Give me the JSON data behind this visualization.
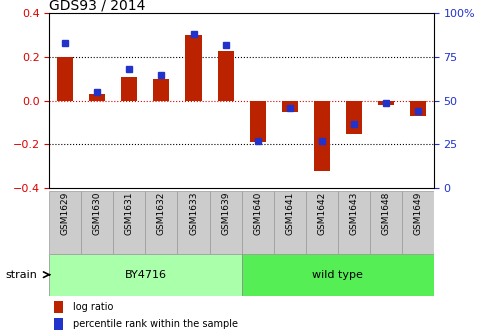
{
  "title": "GDS93 / 2014",
  "samples": [
    "GSM1629",
    "GSM1630",
    "GSM1631",
    "GSM1632",
    "GSM1633",
    "GSM1639",
    "GSM1640",
    "GSM1641",
    "GSM1642",
    "GSM1643",
    "GSM1648",
    "GSM1649"
  ],
  "log_ratio": [
    0.2,
    0.03,
    0.11,
    0.1,
    0.3,
    0.23,
    -0.19,
    -0.05,
    -0.32,
    -0.15,
    -0.02,
    -0.07
  ],
  "percentile": [
    83,
    55,
    68,
    65,
    88,
    82,
    27,
    46,
    27,
    37,
    49,
    44
  ],
  "bar_color": "#bb2200",
  "dot_color": "#2233cc",
  "bar_width": 0.5,
  "strain_groups": [
    {
      "label": "BY4716",
      "start": 0,
      "end": 5,
      "color": "#aaffaa"
    },
    {
      "label": "wild type",
      "start": 6,
      "end": 11,
      "color": "#55ee55"
    }
  ],
  "ylim": [
    -0.4,
    0.4
  ],
  "yticks_left": [
    -0.4,
    -0.2,
    0.0,
    0.2,
    0.4
  ],
  "yticks_right": [
    0,
    25,
    50,
    75,
    100
  ],
  "hline_dotted_vals": [
    0.2,
    -0.2
  ],
  "zero_line_color": "#dd0000",
  "legend_log_ratio": "log ratio",
  "legend_percentile": "percentile rank within the sample",
  "strain_label": "strain",
  "background_color": "#ffffff",
  "tick_label_color_left": "#dd0000",
  "tick_label_color_right": "#2233cc",
  "sample_box_color": "#cccccc",
  "sample_box_edge": "#999999"
}
